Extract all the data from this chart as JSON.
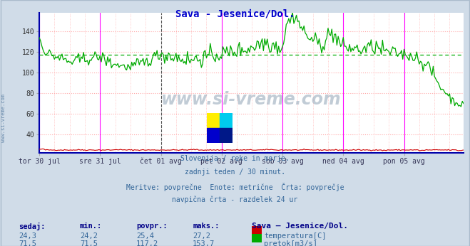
{
  "title": "Sava - Jesenice/Dol.",
  "title_color": "#0000cc",
  "bg_color": "#d0dce8",
  "plot_bg_color": "#ffffff",
  "x_labels": [
    "tor 30 jul",
    "sre 31 jul",
    "čet 01 avg",
    "pet 02 avg",
    "sob 03 avg",
    "ned 04 avg",
    "pon 05 avg"
  ],
  "y_ticks": [
    40,
    60,
    80,
    100,
    120,
    140
  ],
  "y_min": 22,
  "y_max": 158,
  "temp_color": "#cc0000",
  "flow_color": "#00aa00",
  "avg_flow_color": "#00aa00",
  "avg_flow_value": 117.2,
  "avg_temp_value": 25.4,
  "vline_color_solid": "#ff00ff",
  "vline_color_dashed": "#555555",
  "grid_color_h": "#ffaaaa",
  "grid_color_v": "#ffaaaa",
  "watermark_text": "www.si-vreme.com",
  "subtitle_lines": [
    "Slovenija / reke in morje.",
    "zadnji teden / 30 minut.",
    "Meritve: povprečne  Enote: metrične  Črta: povprečje",
    "navpična črta - razdelek 24 ur"
  ],
  "stats_header": [
    "sedaj:",
    "min.:",
    "povpr.:",
    "maks.:",
    "Sava – Jesenice/Dol."
  ],
  "stats_temp": [
    "24,3",
    "24,2",
    "25,4",
    "27,2"
  ],
  "stats_flow": [
    "71,5",
    "71,5",
    "117,2",
    "153,7"
  ],
  "legend_temp": "temperatura[C]",
  "legend_flow": "pretok[m3/s]",
  "n_points": 336,
  "left_border_color": "#0000aa",
  "bottom_border_color": "#0000aa"
}
